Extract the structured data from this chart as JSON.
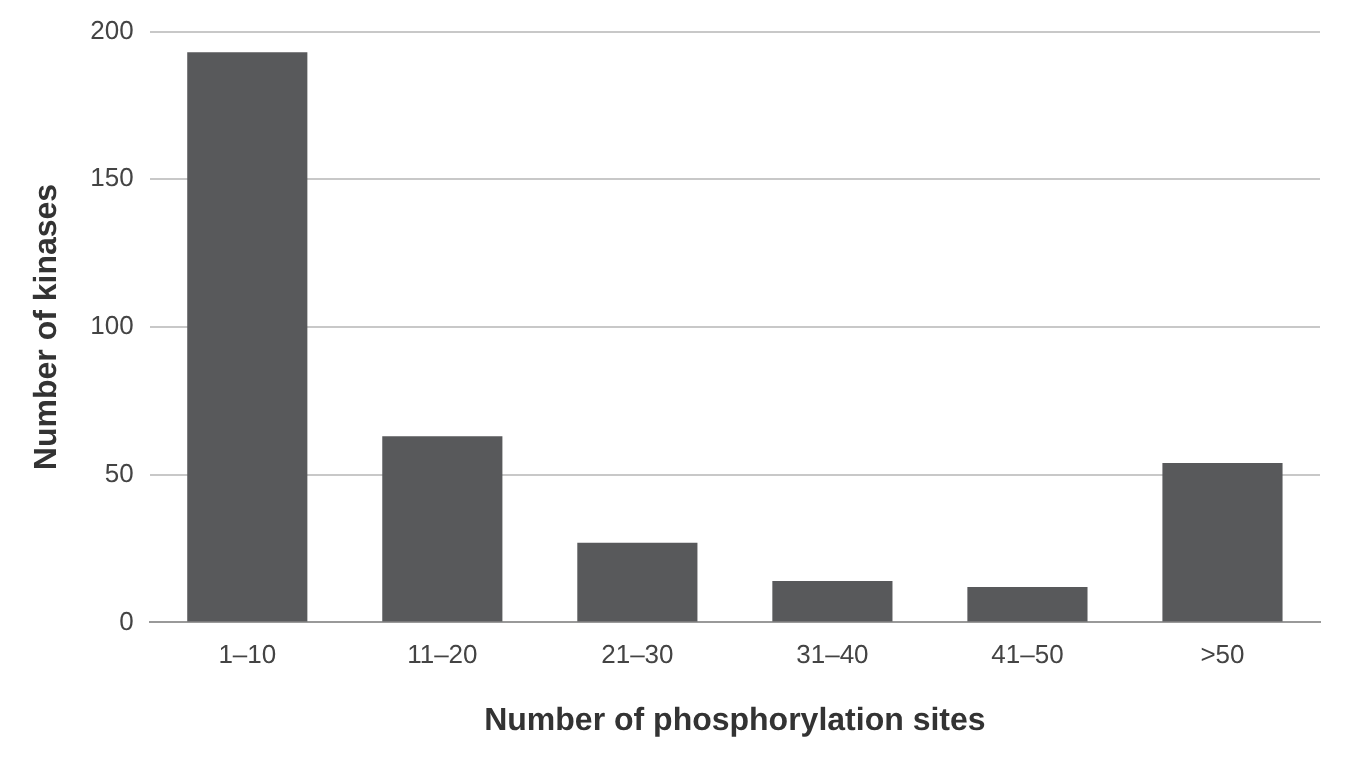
{
  "chart_data": {
    "type": "bar",
    "xlabel": "Number of phosphorylation sites",
    "ylabel": "Number of kinases",
    "categories": [
      "1–10",
      "11–20",
      "21–30",
      "31–40",
      "41–50",
      ">50"
    ],
    "values": [
      193,
      63,
      27,
      14,
      12,
      54
    ],
    "color": "#58595b",
    "ylim": [
      0,
      200
    ],
    "yticks": [
      0,
      50,
      100,
      150,
      200
    ],
    "grid": "y",
    "legend": false
  }
}
